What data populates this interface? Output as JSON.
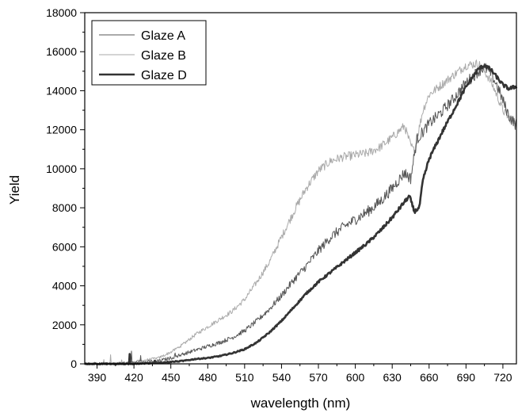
{
  "chart_data": {
    "type": "line",
    "xlabel": "wavelength (nm)",
    "ylabel": "Yield",
    "xlim": [
      380,
      731
    ],
    "ylim": [
      0,
      18000
    ],
    "xticks": [
      390,
      420,
      450,
      480,
      510,
      540,
      570,
      600,
      630,
      660,
      690,
      720
    ],
    "yticks": [
      0,
      2000,
      4000,
      6000,
      8000,
      10000,
      12000,
      14000,
      16000,
      18000
    ],
    "grid": false,
    "legend": "top-left",
    "series": [
      {
        "name": "Glaze A",
        "color": "#555555",
        "stroke": 1,
        "noise": 220,
        "x": [
          380,
          400,
          420,
          440,
          450,
          460,
          470,
          480,
          490,
          500,
          510,
          520,
          530,
          540,
          550,
          560,
          570,
          580,
          590,
          600,
          610,
          620,
          630,
          640,
          645,
          650,
          660,
          670,
          680,
          690,
          700,
          705,
          710,
          715,
          720,
          725,
          730
        ],
        "y": [
          0,
          0,
          50,
          150,
          300,
          500,
          700,
          900,
          1100,
          1350,
          1700,
          2200,
          2800,
          3500,
          4300,
          5000,
          5800,
          6500,
          7000,
          7400,
          7800,
          8300,
          9000,
          9800,
          9500,
          11500,
          12300,
          12900,
          13600,
          14400,
          15000,
          15200,
          14900,
          14300,
          13500,
          12700,
          12300
        ]
      },
      {
        "name": "Glaze B",
        "color": "#aaaaaa",
        "stroke": 1,
        "noise": 170,
        "x": [
          380,
          400,
          420,
          440,
          450,
          460,
          470,
          480,
          490,
          500,
          510,
          520,
          530,
          540,
          550,
          560,
          570,
          580,
          590,
          600,
          610,
          620,
          630,
          640,
          645,
          648,
          655,
          660,
          670,
          680,
          690,
          700,
          705,
          710,
          715,
          720,
          725,
          730
        ],
        "y": [
          0,
          0,
          100,
          300,
          600,
          1000,
          1500,
          1900,
          2300,
          2700,
          3300,
          4200,
          5200,
          6500,
          7800,
          9000,
          9900,
          10400,
          10600,
          10700,
          10800,
          11100,
          11600,
          12200,
          11200,
          10900,
          13000,
          13800,
          14300,
          14800,
          15300,
          15400,
          15000,
          14500,
          13800,
          13000,
          12600,
          12400
        ]
      },
      {
        "name": "Glaze D",
        "color": "#333333",
        "stroke": 2.6,
        "noise": 70,
        "x": [
          380,
          400,
          420,
          440,
          450,
          460,
          470,
          480,
          490,
          500,
          510,
          520,
          530,
          540,
          550,
          560,
          570,
          580,
          590,
          600,
          610,
          620,
          630,
          640,
          644,
          648,
          652,
          655,
          660,
          670,
          680,
          690,
          700,
          705,
          710,
          715,
          720,
          725,
          730
        ],
        "y": [
          0,
          0,
          0,
          50,
          100,
          150,
          250,
          300,
          400,
          550,
          750,
          1100,
          1600,
          2200,
          2900,
          3600,
          4200,
          4700,
          5200,
          5700,
          6200,
          6800,
          7500,
          8300,
          8600,
          7800,
          8000,
          9400,
          10500,
          11800,
          13000,
          14200,
          15100,
          15300,
          15100,
          14700,
          14300,
          14100,
          14200
        ]
      }
    ]
  }
}
